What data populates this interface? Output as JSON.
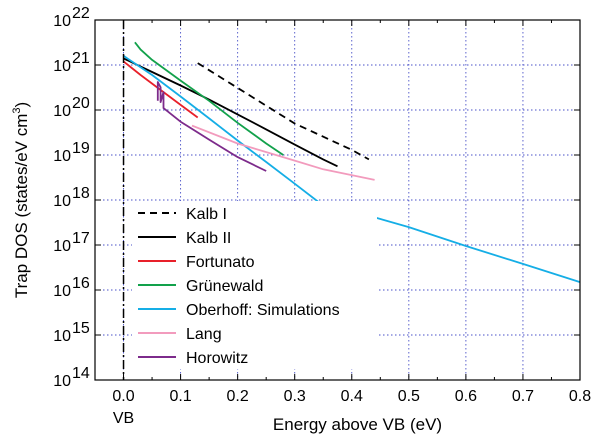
{
  "chart_data": {
    "type": "line",
    "title": "",
    "xlabel": "Energy above VB (eV)",
    "ylabel": "Trap DOS (states/eV cm³)",
    "ylabel_parts": {
      "pre": "Trap DOS (states/eV cm",
      "sup": "3",
      "post": ")"
    },
    "xlim": [
      -0.05,
      0.8
    ],
    "ylim_log10": [
      14,
      22
    ],
    "yscale": "log",
    "grid": true,
    "legend_position": "lower-left",
    "x_ticks": [
      0.0,
      0.1,
      0.2,
      0.3,
      0.4,
      0.5,
      0.6,
      0.7,
      0.8
    ],
    "x_tick_labels": [
      "0.0",
      "0.1",
      "0.2",
      "0.3",
      "0.4",
      "0.5",
      "0.6",
      "0.7",
      "0.8"
    ],
    "y_ticks_exp": [
      14,
      15,
      16,
      17,
      18,
      19,
      20,
      21,
      22
    ],
    "y_tick_base": "10",
    "vb_marker": {
      "x": 0.0,
      "label": "VB"
    },
    "series": [
      {
        "name": "Kalb I",
        "color": "#000000",
        "dash": true,
        "x": [
          0.13,
          0.2,
          0.3,
          0.4,
          0.43
        ],
        "y": [
          1.1e+21,
          3.1e+20,
          5e+19,
          1.3e+19,
          8e+18
        ]
      },
      {
        "name": "Kalb II",
        "color": "#000000",
        "dash": false,
        "x": [
          0.0,
          0.05,
          0.1,
          0.15,
          0.2,
          0.25,
          0.3,
          0.35,
          0.375
        ],
        "y": [
          1.4e+21,
          7e+20,
          3.5e+20,
          1.7e+20,
          8e+19,
          3.7e+19,
          1.7e+19,
          8e+18,
          5.6e+18
        ]
      },
      {
        "name": "Fortunato",
        "color": "#e8202a",
        "dash": false,
        "x": [
          0.0,
          0.03,
          0.06,
          0.1,
          0.13
        ],
        "y": [
          1.2e+21,
          6e+20,
          3.1e+20,
          1.3e+20,
          6.8e+19
        ]
      },
      {
        "name": "Grünewald",
        "color": "#12a14b",
        "dash": false,
        "x": [
          0.02,
          0.03,
          0.05,
          0.1,
          0.15,
          0.2,
          0.25,
          0.28
        ],
        "y": [
          3.2e+21,
          2.2e+21,
          1.3e+21,
          4.5e+20,
          1.6e+20,
          5.2e+19,
          1.8e+19,
          1e+19
        ]
      },
      {
        "name": "Oberhoff: Simulations",
        "color": "#15aee6",
        "dash": false,
        "x": [
          0.0,
          0.05,
          0.1,
          0.15,
          0.2,
          0.25,
          0.3,
          0.35,
          0.405,
          0.5,
          0.6,
          0.7,
          0.8
        ],
        "y": [
          1.6e+21,
          6e+20,
          2e+20,
          6.5e+19,
          2.1e+19,
          7e+18,
          2.3e+18,
          7.5e+17,
          5.5e+17,
          2.5e+17,
          9.5e+16,
          3.8e+16,
          1.5e+16
        ]
      },
      {
        "name": "Lang",
        "color": "#f29bbd",
        "dash": false,
        "x": [
          0.12,
          0.2,
          0.3,
          0.35,
          0.44
        ],
        "y": [
          4.5e+19,
          1.8e+19,
          7.5e+18,
          4.8e+18,
          2.8e+18
        ]
      },
      {
        "name": "Horowitz",
        "color": "#7d2b8b",
        "dash": false,
        "x": [
          0.06,
          0.06,
          0.065,
          0.065,
          0.07,
          0.07,
          0.1,
          0.15,
          0.2,
          0.25
        ],
        "y": [
          1.6e+20,
          4.2e+20,
          3.2e+20,
          1.5e+20,
          2.5e+20,
          1.1e+20,
          5.5e+19,
          2.2e+19,
          9e+18,
          4.4e+18
        ]
      }
    ]
  }
}
